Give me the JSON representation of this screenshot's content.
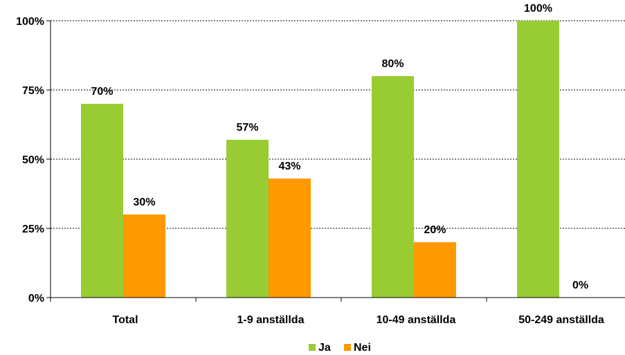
{
  "chart_data": {
    "type": "bar",
    "categories": [
      "Total",
      "1-9 anställda",
      "10-49 anställda",
      "50-249 anställda"
    ],
    "series": [
      {
        "name": "Ja",
        "values": [
          70,
          57,
          80,
          100
        ],
        "color": "#99cc33"
      },
      {
        "name": "Nei",
        "values": [
          30,
          43,
          20,
          0
        ],
        "color": "#ff9900"
      }
    ],
    "value_labels": [
      [
        "70%",
        "57%",
        "80%",
        "100%"
      ],
      [
        "30%",
        "43%",
        "20%",
        "0%"
      ]
    ],
    "y_ticks": [
      0,
      25,
      50,
      75,
      100
    ],
    "y_tick_labels": [
      "0%",
      "25%",
      "50%",
      "75%",
      "100%"
    ],
    "ylim": [
      0,
      100
    ],
    "grid": true,
    "legend_position": "bottom"
  }
}
